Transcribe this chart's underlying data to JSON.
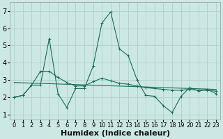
{
  "xlabel": "Humidex (Indice chaleur)",
  "xlim": [
    -0.5,
    23.5
  ],
  "ylim": [
    0.7,
    7.5
  ],
  "xticks": [
    0,
    1,
    2,
    3,
    4,
    5,
    6,
    7,
    8,
    9,
    10,
    11,
    12,
    13,
    14,
    15,
    16,
    17,
    18,
    19,
    20,
    21,
    22,
    23
  ],
  "yticks": [
    1,
    2,
    3,
    4,
    5,
    6,
    7
  ],
  "bg_color": "#cce8e4",
  "grid_color": "#b0d0cc",
  "line_color": "#1a6b5a",
  "series1_x": [
    0,
    1,
    2,
    3,
    4,
    5,
    6,
    7,
    8,
    9,
    10,
    11,
    12,
    13,
    14,
    15,
    16,
    17,
    18,
    19,
    20,
    21,
    22,
    23
  ],
  "series1_y": [
    2.0,
    2.1,
    2.7,
    2.7,
    5.4,
    2.2,
    1.4,
    2.5,
    2.5,
    3.8,
    6.3,
    6.95,
    4.8,
    4.4,
    3.0,
    2.1,
    2.05,
    1.5,
    1.1,
    2.05,
    2.55,
    2.35,
    2.45,
    2.2
  ],
  "series2_x": [
    0,
    1,
    2,
    3,
    4,
    5,
    6,
    7,
    8,
    9,
    10,
    11,
    12,
    13,
    14,
    15,
    16,
    17,
    18,
    19,
    20,
    21,
    22,
    23
  ],
  "series2_y": [
    2.0,
    2.1,
    2.7,
    3.5,
    3.5,
    3.15,
    2.85,
    2.65,
    2.65,
    2.9,
    3.1,
    2.95,
    2.8,
    2.75,
    2.65,
    2.55,
    2.5,
    2.45,
    2.4,
    2.4,
    2.45,
    2.4,
    2.4,
    2.35
  ],
  "trend_x": [
    0,
    23
  ],
  "trend_y": [
    2.85,
    2.45
  ],
  "font_size": 7
}
